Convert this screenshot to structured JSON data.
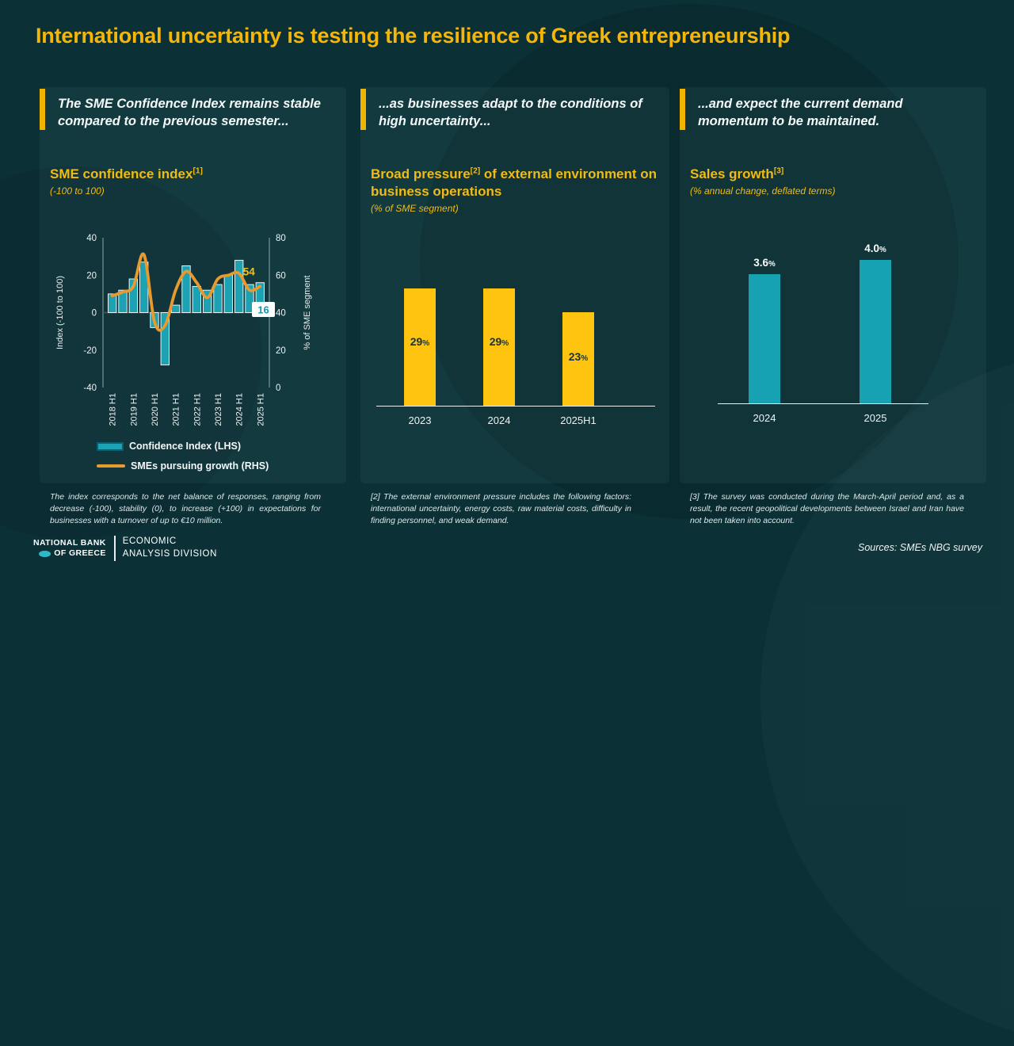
{
  "slide": {
    "title": "International uncertainty is testing the resilience of Greek entrepreneurship"
  },
  "colors": {
    "background": "#0B3137",
    "gold_accent": "#F0B400",
    "title_gold": "#F5B60B",
    "teal_bar": "#1CA2B2",
    "orange_line": "#E79A2E",
    "yellow_bar": "#FFC40F",
    "white": "#FFFFFF"
  },
  "panels": [
    {
      "header": "The SME Confidence Index remains stable compared to the previous semester...",
      "title": "SME confidence index",
      "title_sup": "[1]",
      "title_rest": "",
      "subtitle": "(-100 to 100)",
      "footnote": "The index corresponds to the net balance of responses, ranging from decrease (-100), stability (0), to increase (+100) in expectations for businesses with a turnover of up to €10 million."
    },
    {
      "header": "...as businesses adapt to the conditions of high uncertainty...",
      "title": "Broad pressure",
      "title_sup": "[2]",
      "title_rest": " of external environment on business operations",
      "subtitle": "(% of SME segment)",
      "footnote": "[2] The external environment pressure includes the following factors: international uncertainty, energy costs, raw material costs, difficulty in finding personnel, and weak demand."
    },
    {
      "header": "...and expect the current demand momentum to be maintained.",
      "title": "Sales growth",
      "title_sup": "[3]",
      "title_rest": "",
      "subtitle": "(% annual change, deflated terms)",
      "footnote": "[3] The survey was conducted during the March-April period and, as a result, the recent geopolitical developments between Israel and Iran have not been taken into account."
    }
  ],
  "chart_data": [
    {
      "type": "combo_bar_line",
      "title": "SME confidence index (-100 to 100)",
      "categories": [
        "2018 H1",
        "2018 H2",
        "2019 H1",
        "2019 H2",
        "2020 H1",
        "2020 H2",
        "2021 H1",
        "2021 H2",
        "2022 H1",
        "2022 H2",
        "2023 H1",
        "2023 H2",
        "2024 H1",
        "2024 H2",
        "2025 H1"
      ],
      "x_tick_labels": [
        "2018 H1",
        "2019 H1",
        "2020 H1",
        "2021 H1",
        "2022 H1",
        "2023 H1",
        "2024 H1",
        "2025 H1"
      ],
      "series": [
        {
          "name": "Confidence Index (LHS)",
          "type": "bar",
          "axis": "left",
          "color": "#1CA2B2",
          "values": [
            10,
            12,
            18,
            27,
            -8,
            -28,
            4,
            25,
            14,
            12,
            15,
            20,
            28,
            15,
            16
          ]
        },
        {
          "name": "SMEs pursuing growth (RHS)",
          "type": "line",
          "axis": "right",
          "color": "#E79A2E",
          "values": [
            49,
            51,
            54,
            71,
            35,
            33,
            52,
            62,
            56,
            48,
            58,
            60,
            61,
            52,
            54
          ]
        }
      ],
      "left_axis": {
        "label": "Index (-100 to 100)",
        "range": [
          -40,
          40
        ],
        "ticks": [
          40,
          20,
          0,
          -20,
          -40
        ]
      },
      "right_axis": {
        "label": "% of SME segment",
        "range": [
          0,
          80
        ],
        "ticks": [
          80,
          60,
          40,
          20,
          0
        ]
      },
      "end_labels": {
        "line": "54",
        "bar": "16"
      },
      "legend_position": "bottom-left"
    },
    {
      "type": "bar",
      "categories": [
        "2023",
        "2024",
        "2025H1"
      ],
      "values": [
        29,
        29,
        23
      ],
      "labels": [
        {
          "num": "29",
          "suffix": "%"
        },
        {
          "num": "29",
          "suffix": "%"
        },
        {
          "num": "23",
          "suffix": "%"
        }
      ],
      "bar_color": "#FFC40F",
      "label_placement": "inside",
      "ylim": [
        0,
        32
      ],
      "title": "Broad pressure of external environment on business operations (% of SME segment)"
    },
    {
      "type": "bar",
      "categories": [
        "2024",
        "2025"
      ],
      "values": [
        3.6,
        4.0
      ],
      "labels": [
        {
          "num": "3.6",
          "suffix": "%"
        },
        {
          "num": "4.0",
          "suffix": "%"
        }
      ],
      "bar_color": "#17A2B4",
      "label_placement": "above",
      "ylim": [
        0,
        4.4
      ],
      "title": "Sales growth (% annual change, deflated terms)"
    }
  ],
  "footer": {
    "logo_line1": "NATIONAL BANK",
    "logo_line2": "OF GREECE",
    "division_line1": "ECONOMIC",
    "division_line2": "ANALYSIS DIVISION",
    "sources": "Sources: SMEs NBG survey"
  }
}
